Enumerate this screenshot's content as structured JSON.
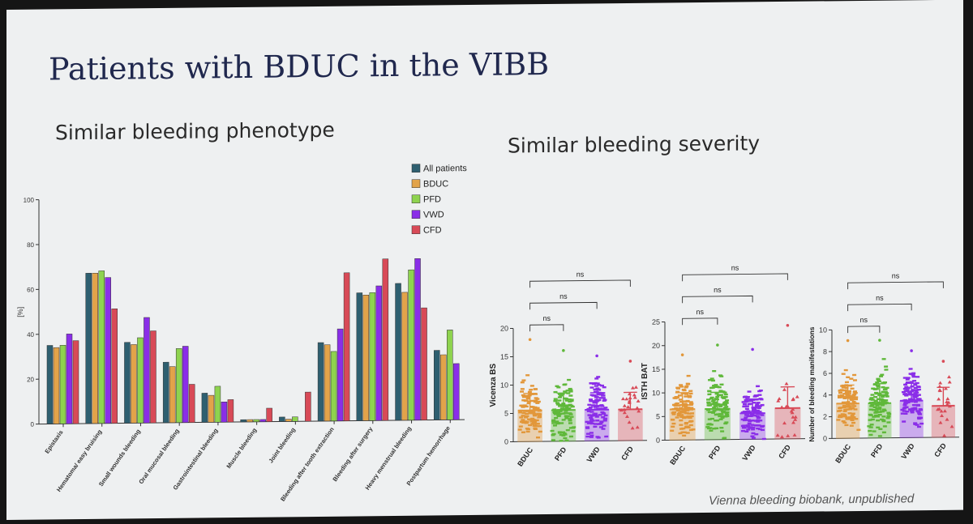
{
  "slide": {
    "title": "Patients with BDUC in the VIBB",
    "subtitle_left": "Similar bleeding phenotype",
    "subtitle_right": "Similar bleeding severity",
    "footer": "Vienna bleeding biobank, unpublished"
  },
  "colors": {
    "All patients": "#2e5f70",
    "BDUC": "#e2a34a",
    "PFD": "#8ed34f",
    "VWD": "#8a2ee8",
    "CFD": "#d84a57"
  },
  "chart_data": [
    {
      "type": "bar",
      "ylabel": "[%]",
      "ylim": [
        0,
        100
      ],
      "yticks": [
        0,
        20,
        40,
        60,
        80,
        100
      ],
      "legend_position": "top-right",
      "categories": [
        "Epistaxis",
        "Hematoma/ easy bruising",
        "Small wounds bleeding",
        "Oral mucosal bleeding",
        "Gastrointestinal bleeding",
        "Muscle bleeding",
        "Joint bleeding",
        "Bleeding after tooth extraction",
        "Bleeding after surgery",
        "Heavy menstrual bleeding",
        "Postpartum hemorrhage"
      ],
      "series": [
        {
          "name": "All patients",
          "values": [
            35,
            67,
            36,
            27,
            13,
            1,
            2,
            35,
            57,
            61,
            31
          ]
        },
        {
          "name": "BDUC",
          "values": [
            34,
            67,
            35,
            25,
            12,
            1,
            1,
            34,
            56,
            57,
            29
          ]
        },
        {
          "name": "PFD",
          "values": [
            35,
            68,
            38,
            33,
            16,
            1,
            2,
            31,
            57,
            67,
            40
          ]
        },
        {
          "name": "VWD",
          "values": [
            40,
            65,
            47,
            34,
            9,
            1,
            0,
            41,
            60,
            72,
            25
          ]
        },
        {
          "name": "CFD",
          "values": [
            37,
            51,
            41,
            17,
            10,
            6,
            13,
            66,
            72,
            50,
            0
          ]
        }
      ]
    },
    {
      "type": "scatter",
      "ylabel": "Vicenza BS",
      "ylim": [
        0,
        20
      ],
      "yticks": [
        0,
        5,
        10,
        15,
        20
      ],
      "categories": [
        "BDUC",
        "PFD",
        "VWD",
        "CFD"
      ],
      "means": [
        5.5,
        5.5,
        5.5,
        5.5
      ],
      "sd": [
        3,
        3,
        3,
        3
      ],
      "max": [
        18,
        16,
        15,
        14
      ],
      "comparisons": [
        {
          "pair": [
            "BDUC",
            "PFD"
          ],
          "label": "ns"
        },
        {
          "pair": [
            "BDUC",
            "VWD"
          ],
          "label": "ns"
        },
        {
          "pair": [
            "BDUC",
            "CFD"
          ],
          "label": "ns"
        }
      ]
    },
    {
      "type": "scatter",
      "ylabel": "ISTH BAT",
      "ylim": [
        0,
        25
      ],
      "yticks": [
        0,
        5,
        10,
        15,
        20,
        25
      ],
      "categories": [
        "BDUC",
        "PFD",
        "VWD",
        "CFD"
      ],
      "means": [
        6.5,
        6.5,
        5.5,
        6.5
      ],
      "sd": [
        3.5,
        3.5,
        3,
        4.5
      ],
      "max": [
        18,
        20,
        19,
        24
      ],
      "comparisons": [
        {
          "pair": [
            "BDUC",
            "PFD"
          ],
          "label": "ns"
        },
        {
          "pair": [
            "BDUC",
            "VWD"
          ],
          "label": "ns"
        },
        {
          "pair": [
            "BDUC",
            "CFD"
          ],
          "label": "ns"
        }
      ]
    },
    {
      "type": "scatter",
      "ylabel": "Number of bleeding manifestations",
      "ylim": [
        0,
        10
      ],
      "yticks": [
        0,
        2,
        4,
        6,
        8,
        10
      ],
      "categories": [
        "BDUC",
        "PFD",
        "VWD",
        "CFD"
      ],
      "means": [
        3.2,
        3.2,
        3.4,
        2.9
      ],
      "sd": [
        1.7,
        1.8,
        1.6,
        1.7
      ],
      "max": [
        9,
        9,
        8,
        7
      ],
      "comparisons": [
        {
          "pair": [
            "BDUC",
            "PFD"
          ],
          "label": "ns"
        },
        {
          "pair": [
            "BDUC",
            "VWD"
          ],
          "label": "ns"
        },
        {
          "pair": [
            "BDUC",
            "CFD"
          ],
          "label": "ns"
        }
      ]
    }
  ]
}
